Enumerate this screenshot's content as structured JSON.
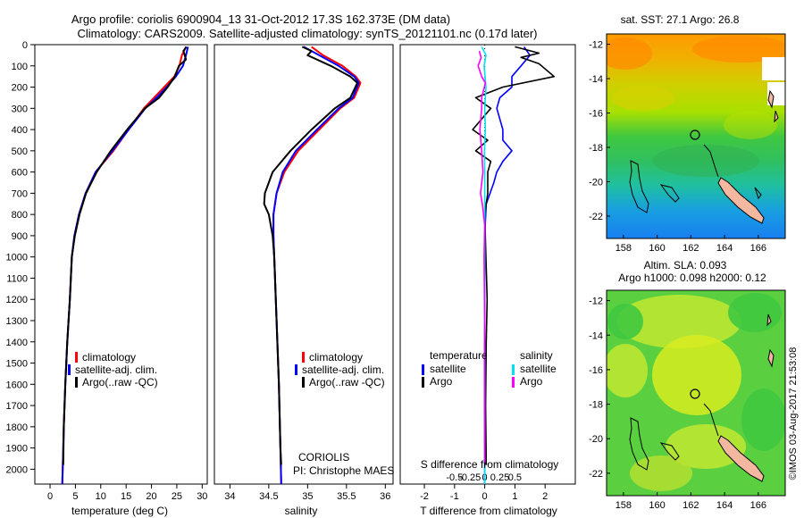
{
  "figure": {
    "title_line1": "Argo profile: coriolis 6900904_13 31-Oct-2012 17.3S 162.373E (DM data)",
    "title_line2": "Climatology: CARS2009. Satellite-adjusted climatology: synTS_20121101.nc (0.17d later)",
    "footer_text": "©IMOS 03-Aug-2017 21:53:08",
    "colors": {
      "climatology": "#ff0000",
      "satellite": "#0000ff",
      "argo": "#000000",
      "sal_satellite": "#00e0f0",
      "sal_argo": "#ff00ff"
    }
  },
  "depth_axis": {
    "ticks": [
      0,
      100,
      200,
      300,
      400,
      500,
      600,
      700,
      800,
      900,
      1000,
      1100,
      1200,
      1300,
      1400,
      1500,
      1600,
      1700,
      1800,
      1900,
      2000
    ],
    "labels": [
      "0",
      "100",
      "200",
      "300",
      "400",
      "500",
      "600",
      "700",
      "800",
      "900",
      "1000",
      "1100",
      "1200",
      "1300",
      "1400",
      "1500",
      "1600",
      "1700",
      "1800",
      "1900",
      "2000"
    ]
  },
  "chart_data": [
    {
      "type": "line",
      "xlabel": "temperature (deg C)",
      "xticks": [
        0,
        5,
        10,
        15,
        20,
        25,
        30
      ],
      "xticklabels": [
        "0",
        "5",
        "10",
        "15",
        "20",
        "25",
        "30"
      ],
      "xlim": [
        -3,
        31
      ],
      "ylim": [
        2070,
        0
      ],
      "legend": [
        "climatology",
        "satellite-adj. clim.",
        "Argo(..raw -QC)"
      ],
      "series": [
        {
          "name": "climatology",
          "color": "#ff0000",
          "points": [
            [
              26.8,
              10
            ],
            [
              26,
              50
            ],
            [
              25.5,
              100
            ],
            [
              24.5,
              150
            ],
            [
              22.5,
              200
            ],
            [
              20.5,
              250
            ],
            [
              18.5,
              300
            ],
            [
              15.5,
              400
            ],
            [
              12.5,
              500
            ],
            [
              9,
              600
            ],
            [
              7,
              700
            ],
            [
              5.7,
              800
            ],
            [
              4.8,
              900
            ],
            [
              4.3,
              1000
            ],
            [
              3.9,
              1200
            ],
            [
              3.4,
              1400
            ],
            [
              3,
              1600
            ],
            [
              2.7,
              1800
            ],
            [
              2.5,
              2000
            ],
            [
              2.4,
              2070
            ]
          ]
        },
        {
          "name": "satellite-adj. clim.",
          "color": "#0000ff",
          "points": [
            [
              27.2,
              10
            ],
            [
              26.8,
              50
            ],
            [
              26.2,
              100
            ],
            [
              24.8,
              150
            ],
            [
              23,
              200
            ],
            [
              21,
              250
            ],
            [
              18.8,
              300
            ],
            [
              15.5,
              400
            ],
            [
              12.3,
              500
            ],
            [
              9,
              600
            ],
            [
              7,
              700
            ],
            [
              5.7,
              800
            ],
            [
              4.8,
              900
            ],
            [
              4.3,
              1000
            ],
            [
              3.9,
              1200
            ],
            [
              3.4,
              1400
            ],
            [
              3,
              1600
            ],
            [
              2.7,
              1800
            ],
            [
              2.5,
              2000
            ],
            [
              2.4,
              2070
            ]
          ]
        },
        {
          "name": "Argo(..raw -QC)",
          "color": "#000000",
          "points": [
            [
              26.9,
              10
            ],
            [
              26.3,
              30
            ],
            [
              26.8,
              70
            ],
            [
              25.4,
              100
            ],
            [
              24.6,
              150
            ],
            [
              23.2,
              200
            ],
            [
              21.5,
              250
            ],
            [
              18.7,
              300
            ],
            [
              15.2,
              400
            ],
            [
              12,
              500
            ],
            [
              9.2,
              600
            ],
            [
              7.1,
              700
            ],
            [
              5.8,
              800
            ],
            [
              4.9,
              900
            ],
            [
              4.3,
              1000
            ],
            [
              3.9,
              1200
            ],
            [
              3.4,
              1400
            ],
            [
              3,
              1600
            ],
            [
              2.7,
              1800
            ],
            [
              2.6,
              1980
            ]
          ]
        }
      ]
    },
    {
      "type": "line",
      "xlabel": "salinity",
      "xticks": [
        34,
        34.5,
        35,
        35.5,
        36
      ],
      "xticklabels": [
        "34",
        "34.5",
        "35",
        "35.5",
        "36"
      ],
      "xlim": [
        33.8,
        36.1
      ],
      "ylim": [
        2070,
        0
      ],
      "legend": [
        "climatology",
        "satellite-adj. clim.",
        "Argo(..raw -QC)"
      ],
      "annotations": [
        "CORIOLIS",
        "PI: Christophe MAES"
      ],
      "series": [
        {
          "name": "climatology",
          "color": "#ff0000",
          "points": [
            [
              35.05,
              10
            ],
            [
              35.2,
              50
            ],
            [
              35.45,
              100
            ],
            [
              35.62,
              150
            ],
            [
              35.68,
              180
            ],
            [
              35.6,
              250
            ],
            [
              35.42,
              300
            ],
            [
              35.15,
              400
            ],
            [
              34.88,
              500
            ],
            [
              34.7,
              600
            ],
            [
              34.6,
              700
            ],
            [
              34.56,
              800
            ],
            [
              34.56,
              900
            ],
            [
              34.57,
              1000
            ],
            [
              34.6,
              1300
            ],
            [
              34.63,
              1600
            ],
            [
              34.65,
              1900
            ],
            [
              34.66,
              2070
            ]
          ]
        },
        {
          "name": "satellite-adj. clim.",
          "color": "#0000ff",
          "points": [
            [
              34.95,
              10
            ],
            [
              35.15,
              50
            ],
            [
              35.4,
              100
            ],
            [
              35.6,
              150
            ],
            [
              35.66,
              180
            ],
            [
              35.58,
              250
            ],
            [
              35.4,
              300
            ],
            [
              35.12,
              400
            ],
            [
              34.85,
              500
            ],
            [
              34.68,
              600
            ],
            [
              34.6,
              700
            ],
            [
              34.56,
              800
            ],
            [
              34.56,
              900
            ],
            [
              34.57,
              1000
            ],
            [
              34.6,
              1300
            ],
            [
              34.63,
              1600
            ],
            [
              34.65,
              1900
            ],
            [
              34.66,
              2070
            ]
          ]
        },
        {
          "name": "Argo(..raw -QC)",
          "color": "#000000",
          "points": [
            [
              34.93,
              10
            ],
            [
              35.05,
              30
            ],
            [
              35.0,
              50
            ],
            [
              35.3,
              100
            ],
            [
              35.55,
              150
            ],
            [
              35.64,
              180
            ],
            [
              35.55,
              250
            ],
            [
              35.35,
              300
            ],
            [
              35.05,
              400
            ],
            [
              34.78,
              500
            ],
            [
              34.55,
              600
            ],
            [
              34.45,
              700
            ],
            [
              34.44,
              750
            ],
            [
              34.5,
              800
            ],
            [
              34.55,
              900
            ],
            [
              34.57,
              1000
            ],
            [
              34.6,
              1300
            ],
            [
              34.63,
              1600
            ],
            [
              34.65,
              1900
            ],
            [
              34.66,
              1980
            ]
          ]
        }
      ]
    },
    {
      "type": "line",
      "xlabel_top": "S difference from climatology",
      "xlabel": "T difference from climatology",
      "xticks_top": [
        -0.5,
        -0.25,
        0,
        0.25,
        0.5
      ],
      "xticklabels_top": [
        "-0.5",
        "-0.25",
        "0",
        "0.25",
        "0.5"
      ],
      "xticks": [
        -2,
        -1,
        0,
        1,
        2
      ],
      "xticklabels": [
        "-2",
        "-1",
        "0",
        "1",
        "2"
      ],
      "xlim": [
        -2.8,
        3
      ],
      "ylim": [
        2070,
        0
      ],
      "legend_titles": [
        "temperature",
        "salinity"
      ],
      "legend": [
        "satellite",
        "Argo",
        "satellite",
        "Argo"
      ],
      "series": [
        {
          "name": "T satellite",
          "color": "#0000ff",
          "points": [
            [
              1.3,
              10
            ],
            [
              1.5,
              50
            ],
            [
              1.2,
              100
            ],
            [
              0.9,
              150
            ],
            [
              0.9,
              200
            ],
            [
              0.5,
              250
            ],
            [
              0.4,
              300
            ],
            [
              0.6,
              400
            ],
            [
              0.6,
              450
            ],
            [
              0.9,
              500
            ],
            [
              0.6,
              550
            ],
            [
              0.4,
              600
            ],
            [
              0.3,
              650
            ],
            [
              0.05,
              750
            ],
            [
              0,
              900
            ],
            [
              0,
              2070
            ]
          ]
        },
        {
          "name": "T Argo",
          "color": "#000000",
          "points": [
            [
              1,
              10
            ],
            [
              1.8,
              40
            ],
            [
              1.2,
              60
            ],
            [
              1.8,
              90
            ],
            [
              2.3,
              150
            ],
            [
              0.6,
              200
            ],
            [
              -0.3,
              250
            ],
            [
              0.2,
              300
            ],
            [
              -0.4,
              400
            ],
            [
              0.1,
              450
            ],
            [
              -0.3,
              500
            ],
            [
              0.2,
              550
            ],
            [
              0.1,
              600
            ],
            [
              0.1,
              700
            ],
            [
              0,
              800
            ],
            [
              0.08,
              1200
            ],
            [
              0.05,
              1400
            ],
            [
              0.03,
              1700
            ],
            [
              0.05,
              1980
            ]
          ]
        },
        {
          "name": "S satellite",
          "color": "#00e0f0",
          "points": [
            [
              -0.05,
              10
            ],
            [
              0.02,
              50
            ],
            [
              -0.01,
              100
            ],
            [
              0.02,
              200
            ],
            [
              0.0,
              300
            ],
            [
              0.01,
              400
            ],
            [
              -0.005,
              500
            ],
            [
              0.0,
              600
            ],
            [
              0,
              2070
            ]
          ]
        },
        {
          "name": "S Argo",
          "color": "#ff00ff",
          "points": [
            [
              -0.09,
              30
            ],
            [
              -0.06,
              60
            ],
            [
              -0.11,
              100
            ],
            [
              -0.05,
              150
            ],
            [
              0.01,
              180
            ],
            [
              -0.05,
              250
            ],
            [
              -0.05,
              300
            ],
            [
              -0.08,
              400
            ],
            [
              -0.05,
              500
            ],
            [
              -0.03,
              600
            ],
            [
              -0.07,
              700
            ],
            [
              -0.04,
              750
            ],
            [
              -0.02,
              800
            ],
            [
              0,
              850
            ],
            [
              -0.01,
              1000
            ],
            [
              -0.005,
              1200
            ],
            [
              0,
              1300
            ],
            [
              -0.005,
              1500
            ],
            [
              0,
              1980
            ]
          ]
        }
      ]
    },
    {
      "type": "heatmap",
      "title": "sat. SST: 27.1  Argo: 26.8",
      "xticklabels": [
        "158",
        "160",
        "162",
        "164",
        "166"
      ],
      "yticklabels": [
        "-12",
        "-14",
        "-16",
        "-18",
        "-20",
        "-22"
      ]
    },
    {
      "type": "heatmap",
      "title_line1": "Altim. SLA: 0.093",
      "title_line2": "Argo h1000: 0.098 h2000: 0.12",
      "xticklabels": [
        "158",
        "160",
        "162",
        "164",
        "166"
      ],
      "yticklabels": [
        "-12",
        "-14",
        "-16",
        "-18",
        "-20",
        "-22"
      ]
    }
  ]
}
